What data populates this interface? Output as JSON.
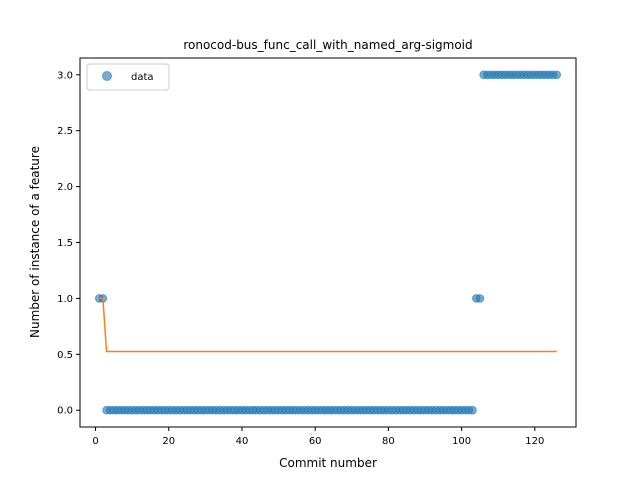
{
  "chart_data": {
    "type": "scatter",
    "title": "ronocod-bus_func_call_with_named_arg-sigmoid",
    "xlabel": "Commit number",
    "ylabel": "Number of instance of a feature",
    "xlim": [
      -4.25,
      131.25
    ],
    "ylim": [
      -0.15,
      3.15
    ],
    "xticks": [
      0,
      20,
      40,
      60,
      80,
      100,
      120
    ],
    "yticks": [
      0.0,
      0.5,
      1.0,
      1.5,
      2.0,
      2.5,
      3.0
    ],
    "ytick_labels": [
      "0.0",
      "0.5",
      "1.0",
      "1.5",
      "2.0",
      "2.5",
      "3.0"
    ],
    "grid": false,
    "legend": {
      "position": "top-left",
      "entries": [
        "data"
      ]
    },
    "colors": {
      "data": "#1f77b4",
      "fit": "#ff7f0e"
    },
    "series": [
      {
        "name": "data",
        "kind": "scatter",
        "segments": [
          {
            "x_from": 1,
            "x_to": 2,
            "y": 1
          },
          {
            "x_from": 3,
            "x_to": 103,
            "y": 0
          },
          {
            "x_from": 104,
            "x_to": 105,
            "y": 1
          },
          {
            "x_from": 106,
            "x_to": 126,
            "y": 3
          }
        ]
      },
      {
        "kind": "line",
        "x": [
          1,
          2,
          3,
          126
        ],
        "y": [
          1.0,
          1.0,
          0.525,
          0.525
        ]
      }
    ]
  }
}
